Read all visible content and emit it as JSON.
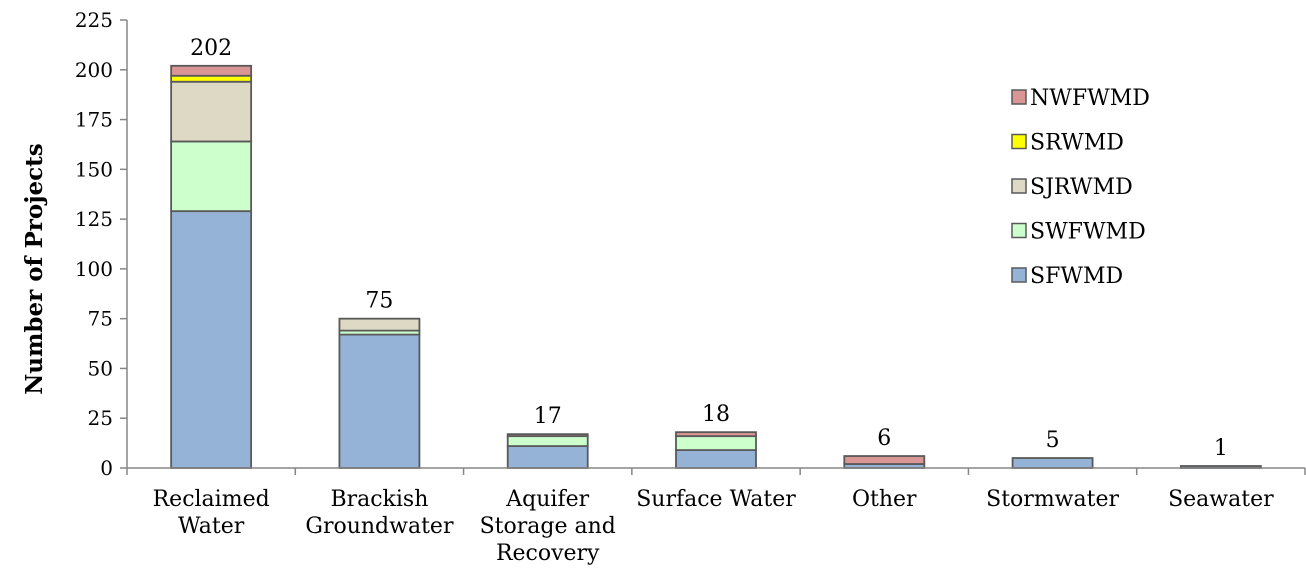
{
  "chart_data": {
    "type": "bar",
    "stacked": true,
    "title": "",
    "xlabel": "",
    "ylabel": "Number of Projects",
    "ylim": [
      0,
      225
    ],
    "yticks": [
      0,
      25,
      50,
      75,
      100,
      125,
      150,
      175,
      200,
      225
    ],
    "grid": false,
    "legend_position": "right",
    "categories": [
      [
        "Reclaimed",
        "Water"
      ],
      [
        "Brackish",
        "Groundwater"
      ],
      [
        "Aquifer",
        "Storage and",
        "Recovery"
      ],
      [
        "Surface Water"
      ],
      [
        "Other"
      ],
      [
        "Stormwater"
      ],
      [
        "Seawater"
      ]
    ],
    "totals": [
      202,
      75,
      17,
      18,
      6,
      5,
      1
    ],
    "series": [
      {
        "name": "SFWMD",
        "color": "#95b3d7",
        "values": [
          129,
          67,
          11,
          9,
          2,
          5,
          1
        ]
      },
      {
        "name": "SWFWMD",
        "color": "#ccffcc",
        "values": [
          35,
          2,
          5,
          7,
          0,
          0,
          0
        ]
      },
      {
        "name": "SJRWMD",
        "color": "#ddd9c4",
        "values": [
          30,
          6,
          0,
          0,
          0,
          0,
          0
        ]
      },
      {
        "name": "SRWMD",
        "color": "#ffff00",
        "values": [
          3,
          0,
          0,
          0,
          0,
          0,
          0
        ]
      },
      {
        "name": "NWFWMD",
        "color": "#d99694",
        "values": [
          5,
          0,
          1,
          2,
          4,
          0,
          0
        ]
      }
    ],
    "legend_order": [
      "NWFWMD",
      "SRWMD",
      "SJRWMD",
      "SWFWMD",
      "SFWMD"
    ]
  }
}
